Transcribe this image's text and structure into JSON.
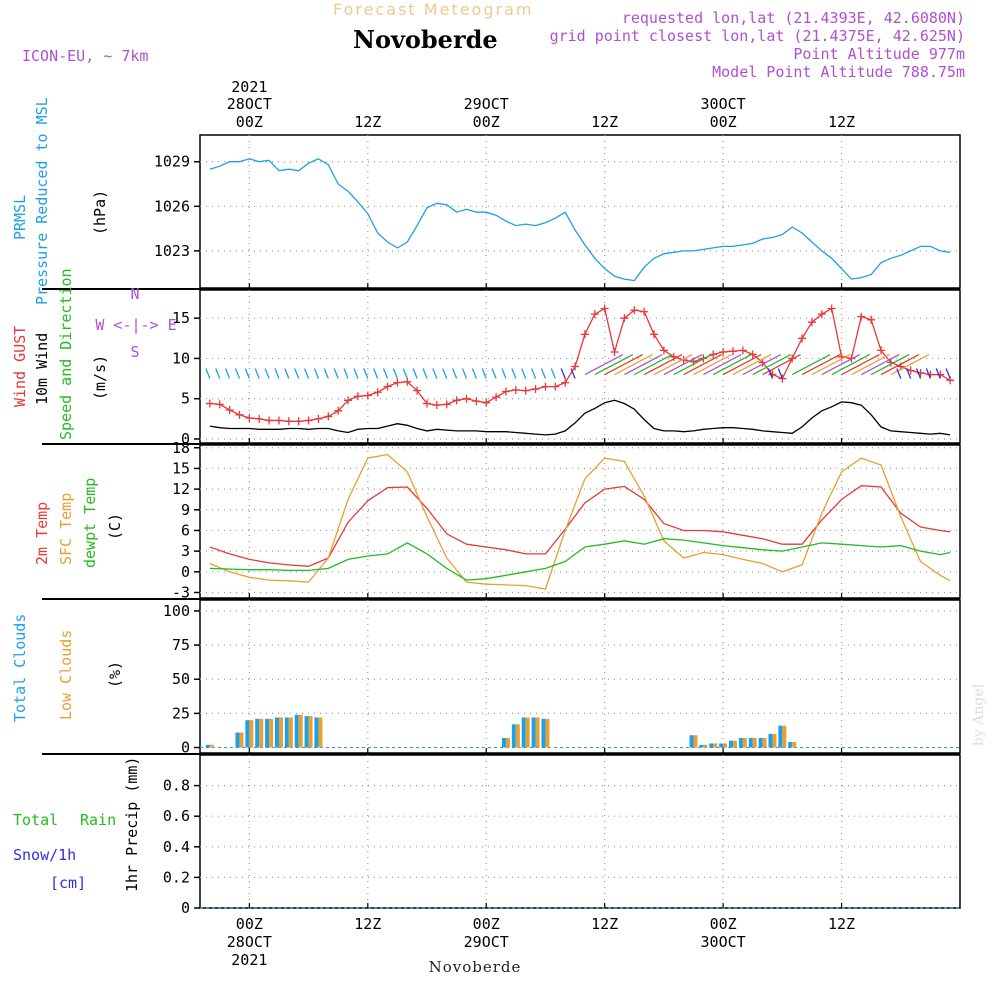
{
  "header": {
    "ghost_title": "Forecast Meteogram",
    "location": "Novoberde",
    "model": "ICON-EU, ~ 7km",
    "requested": "requested lon,lat (21.4393E, 42.6080N)",
    "gridpoint": "grid point closest lon,lat (21.4375E, 42.625N)",
    "point_altitude": "Point Altitude 977m",
    "model_altitude": "Model Point Altitude 788.75m"
  },
  "footer": {
    "location": "Novoberde",
    "watermark": "by Angel"
  },
  "time_axis": {
    "year": "2021",
    "top_ticks": [
      {
        "hour": -2,
        "l1": "2021",
        "l2": "28OCT",
        "l3": "00Z"
      },
      {
        "hour": 10,
        "l1": "",
        "l2": "",
        "l3": "12Z"
      },
      {
        "hour": 22,
        "l1": "",
        "l2": "29OCT",
        "l3": "00Z"
      },
      {
        "hour": 34,
        "l1": "",
        "l2": "",
        "l3": "12Z"
      },
      {
        "hour": 46,
        "l1": "",
        "l2": "30OCT",
        "l3": "00Z"
      },
      {
        "hour": 58,
        "l1": "",
        "l2": "",
        "l3": "12Z"
      }
    ],
    "bottom_ticks": [
      {
        "hour": -2,
        "l1": "00Z",
        "l2": "28OCT",
        "l3": "2021"
      },
      {
        "hour": 10,
        "l1": "12Z",
        "l2": "",
        "l3": ""
      },
      {
        "hour": 22,
        "l1": "00Z",
        "l2": "29OCT",
        "l3": ""
      },
      {
        "hour": 34,
        "l1": "12Z",
        "l2": "",
        "l3": ""
      },
      {
        "hour": 46,
        "l1": "00Z",
        "l2": "30OCT",
        "l3": ""
      },
      {
        "hour": 58,
        "l1": "12Z",
        "l2": "",
        "l3": ""
      }
    ]
  },
  "colors": {
    "pressure": "#1ea0e6",
    "gust": "#e83838",
    "wind": "#000000",
    "dir": "#22bb22",
    "temp": "#e83838",
    "sfc": "#e8a030",
    "dew": "#22bb22",
    "total_clouds": "#1ea0e6",
    "low_clouds": "#e8a030",
    "rain": "#22bb22",
    "snow": "#3030e0",
    "header": "#b050d0"
  },
  "panel_labels": {
    "pressure": [
      "PRMSL",
      "Pressure Reduced to MSL",
      "(hPa)"
    ],
    "wind": [
      "Wind GUST",
      "10m Wind",
      "Speed and Direction",
      "(m/s)"
    ],
    "compass": [
      "N",
      "W <-|-> E",
      "S"
    ],
    "temp": [
      "2m Temp",
      "SFC Temp",
      "dewpt Temp",
      "(C)"
    ],
    "clouds": [
      "Total Clouds",
      "Low Clouds",
      "(%)"
    ],
    "precip": [
      "Total",
      "Rain",
      "Snow/1h",
      "[cm]",
      "1hr Precip (mm)"
    ]
  },
  "chart_data": [
    {
      "type": "line",
      "panel": "pressure",
      "ylim": [
        1020.5,
        1030.8
      ],
      "yticks": [
        1023,
        1026,
        1029
      ],
      "series": [
        {
          "name": "PRMSL",
          "x": [
            -6,
            -5,
            -4,
            -3,
            -2,
            -1,
            0,
            1,
            2,
            3,
            4,
            5,
            6,
            7,
            8,
            9,
            10,
            11,
            12,
            13,
            14,
            15,
            16,
            17,
            18,
            19,
            20,
            21,
            22,
            23,
            24,
            25,
            26,
            27,
            28,
            29,
            30,
            31,
            32,
            33,
            34,
            35,
            36,
            37,
            38,
            39,
            40,
            41,
            42,
            43,
            44,
            45,
            46,
            47,
            48,
            49,
            50,
            51,
            52,
            53,
            54,
            55,
            56,
            57,
            58,
            59,
            60,
            61,
            62,
            63,
            64,
            65,
            66,
            67,
            68,
            69
          ],
          "y": [
            1028.5,
            1028.7,
            1029.0,
            1029.0,
            1029.2,
            1029.0,
            1029.1,
            1028.4,
            1028.5,
            1028.4,
            1028.9,
            1029.2,
            1028.8,
            1027.5,
            1027.0,
            1026.3,
            1025.5,
            1024.2,
            1023.6,
            1023.2,
            1023.6,
            1024.7,
            1025.9,
            1026.2,
            1026.1,
            1025.6,
            1025.8,
            1025.6,
            1025.6,
            1025.4,
            1025.0,
            1024.7,
            1024.8,
            1024.7,
            1024.9,
            1025.2,
            1025.6,
            1024.4,
            1023.4,
            1022.5,
            1021.8,
            1021.3,
            1021.1,
            1021.0,
            1021.9,
            1022.5,
            1022.8,
            1022.9,
            1023.0,
            1023.0,
            1023.1,
            1023.2,
            1023.3,
            1023.3,
            1023.4,
            1023.5,
            1023.8,
            1023.9,
            1024.1,
            1024.6,
            1024.2,
            1023.6,
            1023.0,
            1022.5,
            1021.8,
            1021.1,
            1021.2,
            1021.4,
            1022.2,
            1022.5,
            1022.7,
            1023.0,
            1023.3,
            1023.3,
            1023.0,
            1022.9
          ]
        }
      ]
    },
    {
      "type": "line",
      "panel": "wind",
      "ylim": [
        -0.5,
        18.5
      ],
      "yticks": [
        0,
        5,
        10,
        15
      ],
      "series": [
        {
          "name": "Wind GUST",
          "x": [
            -6,
            -5,
            -4,
            -3,
            -2,
            -1,
            0,
            1,
            2,
            3,
            4,
            5,
            6,
            7,
            8,
            9,
            10,
            11,
            12,
            13,
            14,
            15,
            16,
            17,
            18,
            19,
            20,
            21,
            22,
            23,
            24,
            25,
            26,
            27,
            28,
            29,
            30,
            31,
            32,
            33,
            34,
            35,
            36,
            37,
            38,
            39,
            40,
            41,
            42,
            43,
            44,
            45,
            46,
            47,
            48,
            49,
            50,
            51,
            52,
            53,
            54,
            55,
            56,
            57,
            58,
            59,
            60,
            61,
            62,
            63,
            64,
            65,
            66,
            67,
            68,
            69
          ],
          "y": [
            4.4,
            4.3,
            3.6,
            3.0,
            2.6,
            2.5,
            2.3,
            2.3,
            2.2,
            2.2,
            2.3,
            2.5,
            2.8,
            3.5,
            4.8,
            5.3,
            5.4,
            5.8,
            6.5,
            7.0,
            7.1,
            6.0,
            4.4,
            4.2,
            4.3,
            4.8,
            5.0,
            4.7,
            4.5,
            5.2,
            5.9,
            6.1,
            6.0,
            6.2,
            6.5,
            6.5,
            7.0,
            9.0,
            13.0,
            15.5,
            16.2,
            10.8,
            15.0,
            16.0,
            15.8,
            13.0,
            11.0,
            10.2,
            9.8,
            9.6,
            10.0,
            10.5,
            10.8,
            10.9,
            11.0,
            10.5,
            9.5,
            8.0,
            7.5,
            10.0,
            12.5,
            14.5,
            15.5,
            16.2,
            10.2,
            10.0,
            15.2,
            14.8,
            11.0,
            9.5,
            9.0,
            8.5,
            8.2,
            8.0,
            8.0,
            7.3
          ]
        },
        {
          "name": "10m Wind",
          "x": [
            -6,
            -5,
            -4,
            -3,
            -2,
            -1,
            0,
            1,
            2,
            3,
            4,
            5,
            6,
            7,
            8,
            9,
            10,
            11,
            12,
            13,
            14,
            15,
            16,
            17,
            18,
            19,
            20,
            21,
            22,
            23,
            24,
            25,
            26,
            27,
            28,
            29,
            30,
            31,
            32,
            33,
            34,
            35,
            36,
            37,
            38,
            39,
            40,
            41,
            42,
            43,
            44,
            45,
            46,
            47,
            48,
            49,
            50,
            51,
            52,
            53,
            54,
            55,
            56,
            57,
            58,
            59,
            60,
            61,
            62,
            63,
            64,
            65,
            66,
            67,
            68,
            69
          ],
          "y": [
            1.6,
            1.4,
            1.3,
            1.3,
            1.3,
            1.2,
            1.2,
            1.2,
            1.3,
            1.3,
            1.2,
            1.3,
            1.3,
            1.0,
            0.8,
            1.2,
            1.3,
            1.3,
            1.6,
            1.9,
            1.7,
            1.3,
            1.0,
            1.2,
            1.1,
            1.0,
            1.0,
            1.0,
            0.9,
            0.9,
            0.9,
            0.8,
            0.7,
            0.6,
            0.5,
            0.6,
            1.0,
            2.0,
            3.2,
            3.8,
            4.5,
            4.8,
            4.4,
            3.7,
            2.4,
            1.3,
            1.0,
            1.0,
            0.9,
            1.0,
            1.2,
            1.3,
            1.4,
            1.4,
            1.3,
            1.2,
            1.0,
            0.9,
            0.8,
            0.7,
            1.5,
            2.6,
            3.5,
            4.0,
            4.6,
            4.5,
            4.2,
            3.0,
            1.5,
            1.0,
            0.9,
            0.8,
            0.7,
            0.6,
            0.7,
            0.5
          ]
        }
      ],
      "direction_barbs": {
        "name": "Direction",
        "y_level": 8.0
      }
    },
    {
      "type": "line",
      "panel": "temp",
      "ylim": [
        -3.8,
        18.4
      ],
      "yticks": [
        -3,
        0,
        3,
        6,
        9,
        12,
        15,
        18
      ],
      "series": [
        {
          "name": "2m Temp",
          "x": [
            -6,
            -4,
            -2,
            0,
            2,
            4,
            6,
            8,
            10,
            12,
            14,
            16,
            18,
            20,
            22,
            24,
            26,
            28,
            30,
            32,
            34,
            36,
            38,
            40,
            42,
            44,
            46,
            48,
            50,
            52,
            54,
            56,
            58,
            60,
            62,
            64,
            66,
            68,
            69
          ],
          "y": [
            3.6,
            2.6,
            1.8,
            1.3,
            1.0,
            0.8,
            2.0,
            7.2,
            10.3,
            12.2,
            12.3,
            9.2,
            5.5,
            4.0,
            3.6,
            3.2,
            2.6,
            2.6,
            6.2,
            10.0,
            12.0,
            12.4,
            10.5,
            7.0,
            6.0,
            6.0,
            5.8,
            5.3,
            4.8,
            4.0,
            4.0,
            7.5,
            10.5,
            12.5,
            12.3,
            8.5,
            6.5,
            6.0,
            5.8
          ]
        },
        {
          "name": "SFC Temp",
          "x": [
            -6,
            -4,
            -2,
            0,
            2,
            4,
            6,
            8,
            10,
            12,
            14,
            16,
            18,
            20,
            22,
            24,
            26,
            28,
            30,
            32,
            34,
            36,
            38,
            40,
            42,
            44,
            46,
            48,
            50,
            52,
            54,
            56,
            58,
            60,
            62,
            64,
            66,
            68,
            69
          ],
          "y": [
            1.2,
            0.0,
            -0.8,
            -1.2,
            -1.3,
            -1.5,
            2.0,
            10.5,
            16.5,
            17.0,
            14.5,
            8.0,
            2.0,
            -1.5,
            -1.8,
            -1.9,
            -2.0,
            -2.5,
            6.0,
            13.5,
            16.5,
            16.0,
            11.0,
            4.5,
            2.0,
            2.8,
            2.5,
            1.8,
            1.2,
            0.0,
            1.0,
            8.5,
            14.5,
            16.5,
            15.5,
            8.0,
            1.5,
            -0.5,
            -1.3
          ]
        },
        {
          "name": "dewpt Temp",
          "x": [
            -6,
            -4,
            -2,
            0,
            2,
            4,
            6,
            8,
            10,
            12,
            14,
            16,
            18,
            20,
            22,
            24,
            26,
            28,
            30,
            32,
            34,
            36,
            38,
            40,
            42,
            44,
            46,
            48,
            50,
            52,
            54,
            56,
            58,
            60,
            62,
            64,
            66,
            68,
            69
          ],
          "y": [
            0.5,
            0.4,
            0.3,
            0.3,
            0.2,
            0.2,
            0.5,
            1.8,
            2.3,
            2.6,
            4.2,
            2.6,
            0.5,
            -1.2,
            -1.0,
            -0.5,
            0.0,
            0.5,
            1.5,
            3.6,
            4.0,
            4.5,
            4.0,
            4.8,
            4.6,
            4.2,
            3.8,
            3.5,
            3.2,
            3.0,
            3.6,
            4.2,
            4.0,
            3.8,
            3.6,
            3.8,
            3.0,
            2.5,
            2.8
          ]
        }
      ]
    },
    {
      "type": "bar",
      "panel": "clouds",
      "ylim": [
        -4,
        108
      ],
      "yticks": [
        0,
        25,
        50,
        75,
        100
      ],
      "series": [
        {
          "name": "Total Clouds",
          "x": [
            -6,
            -3,
            -2,
            -1,
            0,
            1,
            2,
            3,
            4,
            5,
            24,
            25,
            26,
            27,
            28,
            43,
            44,
            45,
            46,
            47,
            48,
            49,
            50,
            51,
            52,
            53
          ],
          "y": [
            2,
            11,
            20,
            21,
            21,
            22,
            22,
            24,
            23,
            22,
            7,
            17,
            22,
            22,
            21,
            9,
            2,
            3,
            3,
            5,
            7,
            7,
            7,
            10,
            16,
            4
          ]
        },
        {
          "name": "Low Clouds",
          "x": [
            -6,
            -3,
            -2,
            -1,
            0,
            1,
            2,
            3,
            4,
            5,
            24,
            25,
            26,
            27,
            28,
            43,
            44,
            45,
            46,
            47,
            48,
            49,
            50,
            51,
            52,
            53
          ],
          "y": [
            2,
            11,
            20,
            21,
            21,
            22,
            22,
            24,
            23,
            22,
            7,
            17,
            22,
            22,
            21,
            9,
            2,
            3,
            3,
            5,
            7,
            7,
            7,
            10,
            16,
            4
          ]
        }
      ]
    },
    {
      "type": "bar",
      "panel": "precip",
      "ylim": [
        0,
        1.0
      ],
      "yticks": [
        0,
        0.2,
        0.4,
        0.6,
        0.8
      ],
      "series": [
        {
          "name": "Rain",
          "x": [],
          "y": []
        },
        {
          "name": "Snow/1h",
          "x": [],
          "y": []
        }
      ]
    }
  ]
}
